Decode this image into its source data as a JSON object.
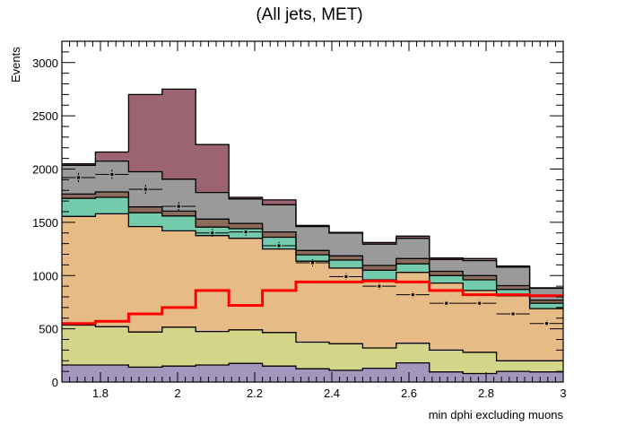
{
  "chart_data": {
    "type": "histogram",
    "title": "(All jets, MET)",
    "xlabel": "min dphi excluding muons",
    "ylabel": "Events",
    "xlim": [
      1.7,
      3.0
    ],
    "ylim": [
      0,
      3200
    ],
    "x_ticks": [
      "1.8",
      "2",
      "2.2",
      "2.4",
      "2.6",
      "2.8",
      "3"
    ],
    "y_ticks": [
      "0",
      "500",
      "1000",
      "1500",
      "2000",
      "2500",
      "3000"
    ],
    "bin_edges": [
      1.7,
      1.787,
      1.873,
      1.96,
      2.047,
      2.133,
      2.22,
      2.307,
      2.393,
      2.48,
      2.567,
      2.653,
      2.74,
      2.827,
      2.913,
      3.0
    ],
    "stack": [
      {
        "color": "#a397be",
        "cumulative": [
          160,
          160,
          140,
          150,
          160,
          175,
          150,
          125,
          110,
          130,
          180,
          95,
          80,
          100,
          95
        ]
      },
      {
        "color": "#d3d589",
        "cumulative": [
          535,
          520,
          470,
          515,
          475,
          490,
          465,
          375,
          360,
          320,
          365,
          300,
          280,
          200,
          200
        ]
      },
      {
        "color": "#e7bb86",
        "cumulative": [
          1555,
          1580,
          1460,
          1420,
          1375,
          1350,
          1250,
          1135,
          1070,
          960,
          1030,
          930,
          860,
          810,
          690
        ]
      },
      {
        "color": "#73cbab",
        "cumulative": [
          1725,
          1735,
          1590,
          1560,
          1455,
          1440,
          1360,
          1195,
          1145,
          1050,
          1110,
          1000,
          960,
          870,
          740
        ]
      },
      {
        "color": "#8b6b5c",
        "cumulative": [
          1765,
          1785,
          1645,
          1605,
          1530,
          1490,
          1410,
          1235,
          1185,
          1095,
          1160,
          1040,
          1000,
          905,
          770
        ]
      },
      {
        "color": "#9a9a9a",
        "cumulative": [
          2035,
          2075,
          1975,
          1905,
          1780,
          1720,
          1665,
          1460,
          1400,
          1295,
          1350,
          1150,
          1140,
          1080,
          880
        ]
      },
      {
        "color": "#9c6370",
        "cumulative": [
          2050,
          2160,
          2700,
          2750,
          2230,
          1735,
          1710,
          1470,
          1405,
          1310,
          1370,
          1165,
          1160,
          1090,
          885
        ]
      }
    ],
    "signal": {
      "color": "#ff0000",
      "values": [
        550,
        570,
        640,
        700,
        860,
        720,
        860,
        940,
        940,
        950,
        940,
        860,
        820,
        820,
        810
      ]
    },
    "points": {
      "x": [
        1.743,
        1.83,
        1.917,
        2.003,
        2.09,
        2.177,
        2.263,
        2.35,
        2.437,
        2.523,
        2.61,
        2.697,
        2.783,
        2.87,
        2.957
      ],
      "y": [
        1920,
        1950,
        1810,
        1650,
        1400,
        1410,
        1280,
        1120,
        990,
        900,
        820,
        740,
        740,
        640,
        550
      ]
    },
    "legend": "none"
  }
}
